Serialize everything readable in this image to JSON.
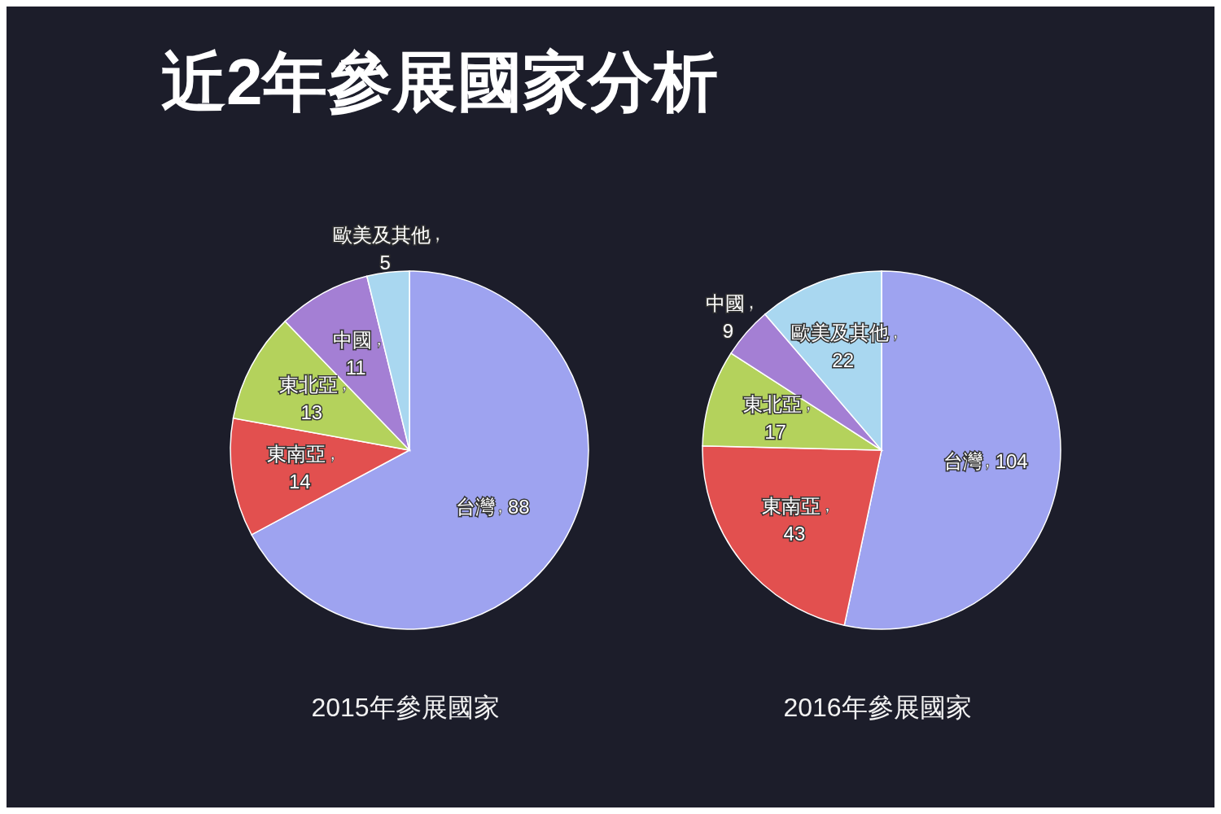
{
  "chart_data": [
    {
      "type": "pie",
      "title": "2015年參展國家",
      "annotations": [
        "近2年參展國家分析"
      ],
      "categories": [
        "台灣",
        "東南亞",
        "東北亞",
        "中國",
        "歐美及其他"
      ],
      "values": [
        88,
        14,
        13,
        11,
        5
      ],
      "colors": [
        "#9ea3f0",
        "#e2504f",
        "#b4d25c",
        "#a47fd4",
        "#a9d7f0"
      ],
      "data_labels": true,
      "legend": false
    },
    {
      "type": "pie",
      "title": "2016年參展國家",
      "categories": [
        "台灣",
        "東南亞",
        "東北亞",
        "中國",
        "歐美及其他"
      ],
      "values": [
        104,
        43,
        17,
        9,
        22
      ],
      "colors": [
        "#9ea3f0",
        "#e2504f",
        "#b4d25c",
        "#a47fd4",
        "#a9d7f0"
      ],
      "data_labels": true,
      "legend": false
    }
  ]
}
